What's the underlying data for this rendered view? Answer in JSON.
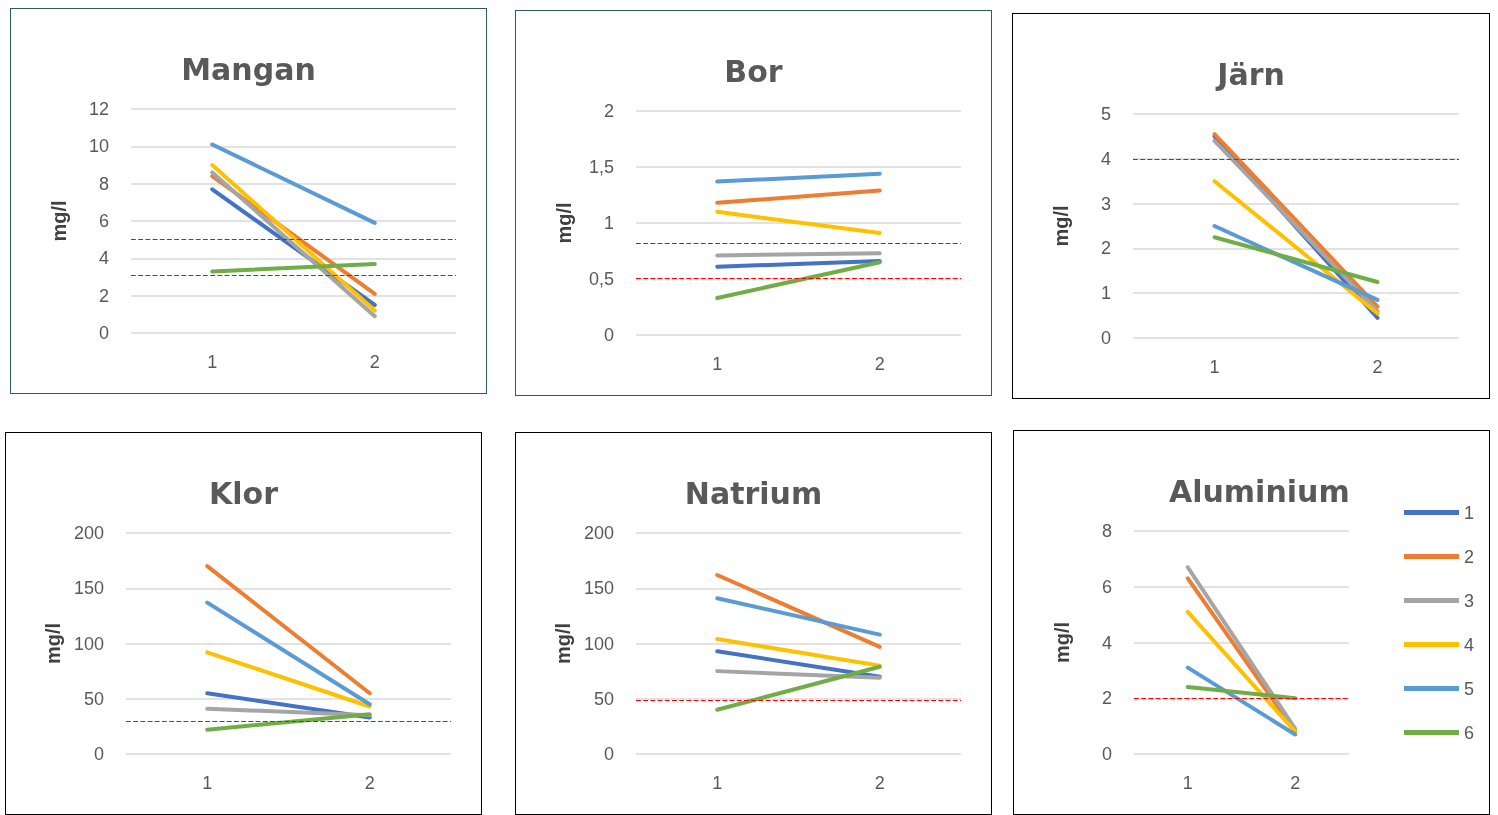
{
  "chart_data": [
    {
      "type": "line",
      "title": "Mangan",
      "ylabel": "mg/l",
      "categories": [
        "1",
        "2"
      ],
      "ylim": [
        0,
        12
      ],
      "yticks": [
        0,
        2,
        4,
        6,
        8,
        10,
        12
      ],
      "grid": "y",
      "marker": "none",
      "line_style": "solid",
      "series": [
        {
          "color": "#4472c4",
          "values": [
            7.7,
            1.5
          ]
        },
        {
          "color": "#ed7d31",
          "values": [
            8.4,
            2.1
          ]
        },
        {
          "color": "#a5a5a5",
          "values": [
            8.6,
            0.9
          ]
        },
        {
          "color": "#ffc000",
          "values": [
            9.0,
            1.2
          ]
        },
        {
          "color": "#5b9bd5",
          "values": [
            10.1,
            5.9
          ]
        },
        {
          "color": "#70ad47",
          "values": [
            3.3,
            3.7
          ]
        }
      ],
      "ref_lines": [
        {
          "axis": "y",
          "value": 5,
          "color": "#ff0000",
          "line_style": "dashed"
        },
        {
          "axis": "y",
          "value": 3.1,
          "color": "#ff0000",
          "line_style": "dashed"
        }
      ]
    },
    {
      "type": "line",
      "title": "Bor",
      "ylabel": "mg/l",
      "categories": [
        "1",
        "2"
      ],
      "ylim": [
        0,
        2
      ],
      "yticks": [
        0,
        {
          "value": 0.5,
          "label": "0,5"
        },
        1,
        {
          "value": 1.5,
          "label": "1,5"
        },
        2
      ],
      "grid": "y",
      "marker": "none",
      "line_style": "solid",
      "series": [
        {
          "color": "#4472c4",
          "values": [
            0.61,
            0.66
          ]
        },
        {
          "color": "#ed7d31",
          "values": [
            1.18,
            1.29
          ]
        },
        {
          "color": "#a5a5a5",
          "values": [
            0.71,
            0.73
          ]
        },
        {
          "color": "#ffc000",
          "values": [
            1.1,
            0.91
          ]
        },
        {
          "color": "#5b9bd5",
          "values": [
            1.37,
            1.44
          ]
        },
        {
          "color": "#70ad47",
          "values": [
            0.33,
            0.65
          ]
        }
      ],
      "ref_lines": [
        {
          "axis": "y",
          "value": 0.82,
          "color": "#ff0000",
          "line_style": "dashed"
        },
        {
          "axis": "y",
          "value": 0.51,
          "color": "#ff0000",
          "line_style": "dashed"
        }
      ]
    },
    {
      "type": "line",
      "title": "Järn",
      "ylabel": "mg/l",
      "categories": [
        "1",
        "2"
      ],
      "ylim": [
        0,
        5
      ],
      "yticks": [
        0,
        1,
        2,
        3,
        4,
        5
      ],
      "grid": "y",
      "marker": "none",
      "line_style": "solid",
      "series": [
        {
          "color": "#4472c4",
          "values": [
            4.5,
            0.45
          ]
        },
        {
          "color": "#ed7d31",
          "values": [
            4.55,
            0.7
          ]
        },
        {
          "color": "#a5a5a5",
          "values": [
            4.4,
            0.6
          ]
        },
        {
          "color": "#ffc000",
          "values": [
            3.5,
            0.55
          ]
        },
        {
          "color": "#5b9bd5",
          "values": [
            2.5,
            0.85
          ]
        },
        {
          "color": "#70ad47",
          "values": [
            2.25,
            1.25
          ]
        }
      ],
      "ref_lines": [
        {
          "axis": "y",
          "value": 4,
          "color": "#ff0000",
          "line_style": "dashed"
        }
      ]
    },
    {
      "type": "line",
      "title": "Klor",
      "ylabel": "mg/l",
      "categories": [
        "1",
        "2"
      ],
      "ylim": [
        0,
        200
      ],
      "yticks": [
        0,
        50,
        100,
        150,
        200
      ],
      "grid": "y",
      "marker": "none",
      "line_style": "solid",
      "series": [
        {
          "color": "#4472c4",
          "values": [
            55,
            33
          ]
        },
        {
          "color": "#ed7d31",
          "values": [
            170,
            55
          ]
        },
        {
          "color": "#a5a5a5",
          "values": [
            41,
            35
          ]
        },
        {
          "color": "#ffc000",
          "values": [
            92,
            43
          ]
        },
        {
          "color": "#5b9bd5",
          "values": [
            137,
            45
          ]
        },
        {
          "color": "#70ad47",
          "values": [
            22,
            36
          ]
        }
      ],
      "ref_lines": [
        {
          "axis": "y",
          "value": 30,
          "color": "#ff0000",
          "line_style": "dashed"
        }
      ]
    },
    {
      "type": "line",
      "title": "Natrium",
      "ylabel": "mg/l",
      "categories": [
        "1",
        "2"
      ],
      "ylim": [
        0,
        200
      ],
      "yticks": [
        0,
        50,
        100,
        150,
        200
      ],
      "grid": "y",
      "marker": "none",
      "line_style": "solid",
      "series": [
        {
          "color": "#4472c4",
          "values": [
            93,
            70
          ]
        },
        {
          "color": "#ed7d31",
          "values": [
            162,
            97
          ]
        },
        {
          "color": "#a5a5a5",
          "values": [
            75,
            69
          ]
        },
        {
          "color": "#ffc000",
          "values": [
            104,
            80
          ]
        },
        {
          "color": "#5b9bd5",
          "values": [
            141,
            108
          ]
        },
        {
          "color": "#70ad47",
          "values": [
            40,
            79
          ]
        }
      ],
      "ref_lines": [
        {
          "axis": "y",
          "value": 49,
          "color": "#ff0000",
          "line_style": "dashed"
        }
      ]
    },
    {
      "type": "line",
      "title": "Aluminium",
      "ylabel": "mg/l",
      "categories": [
        "1",
        "2"
      ],
      "ylim": [
        0,
        8
      ],
      "yticks": [
        0,
        2,
        4,
        6,
        8
      ],
      "grid": "y",
      "marker": "none",
      "line_style": "solid",
      "legend": "right",
      "series": [
        {
          "name": "1",
          "color": "#4472c4",
          "values": [
            null,
            null
          ]
        },
        {
          "name": "2",
          "color": "#ed7d31",
          "values": [
            6.3,
            0.8
          ]
        },
        {
          "name": "3",
          "color": "#a5a5a5",
          "values": [
            6.7,
            0.9
          ]
        },
        {
          "name": "4",
          "color": "#ffc000",
          "values": [
            5.1,
            0.8
          ]
        },
        {
          "name": "5",
          "color": "#5b9bd5",
          "values": [
            3.1,
            0.7
          ]
        },
        {
          "name": "6",
          "color": "#70ad47",
          "values": [
            2.4,
            2.0
          ]
        }
      ],
      "ref_lines": [
        {
          "axis": "y",
          "value": 2,
          "color": "#ff0000",
          "line_style": "dashed"
        }
      ]
    }
  ]
}
